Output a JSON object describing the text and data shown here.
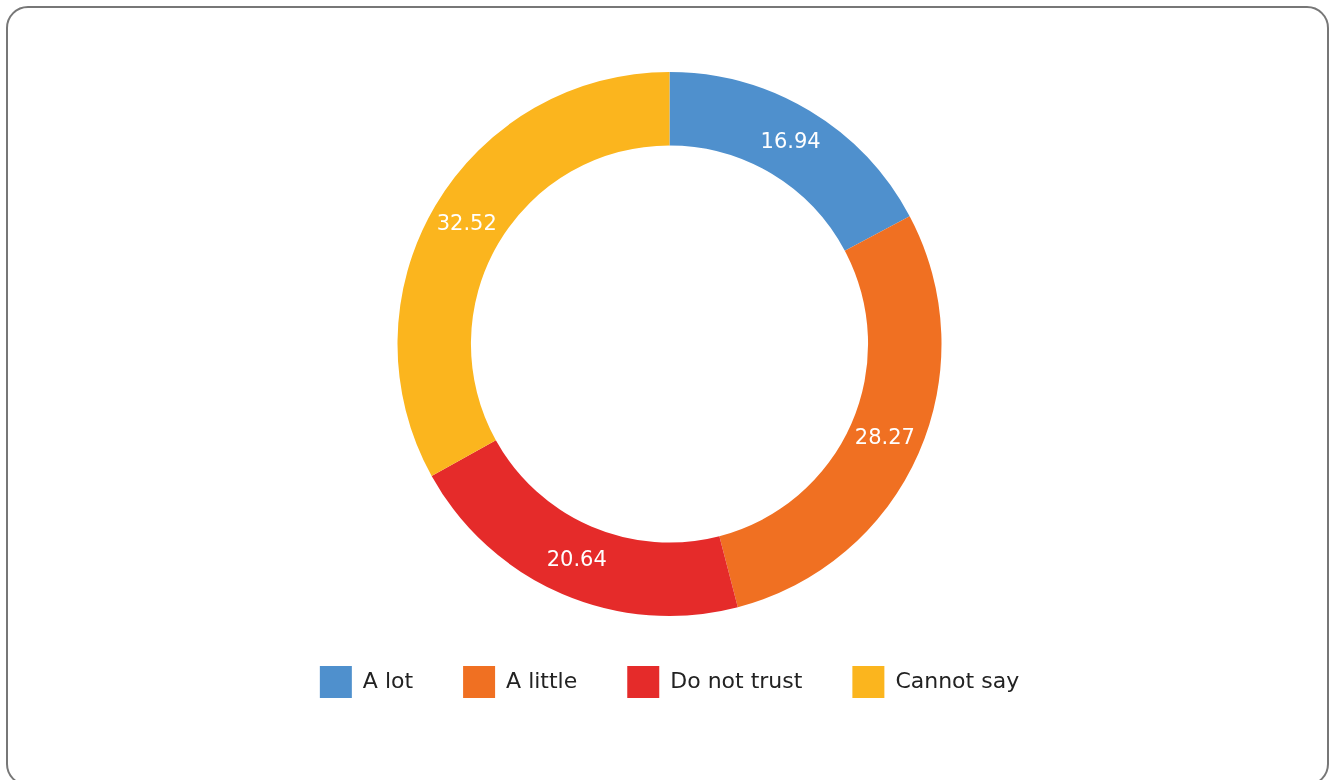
{
  "chart_data": {
    "type": "donut",
    "categories": [
      "A lot",
      "A little",
      "Do not trust",
      "Cannot say"
    ],
    "values": [
      16.94,
      28.27,
      20.64,
      32.52
    ],
    "colors": [
      "#4f90cd",
      "#f07022",
      "#e52b2a",
      "#fbb51e"
    ],
    "data_labels": true,
    "legend": "bottom"
  }
}
